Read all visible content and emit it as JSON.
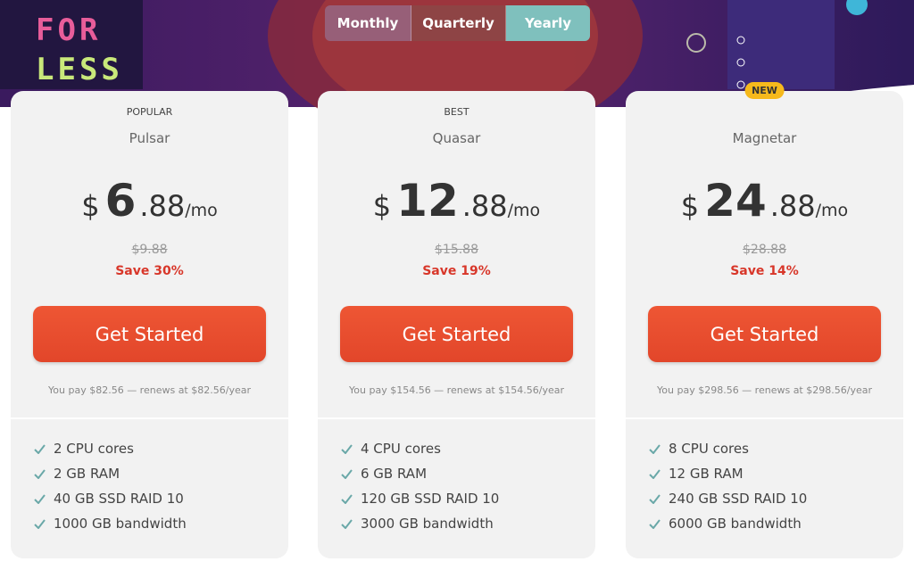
{
  "hero": {
    "art_lines": [
      "FOR",
      "LESS"
    ]
  },
  "tabs": [
    {
      "label": "Monthly"
    },
    {
      "label": "Quarterly"
    },
    {
      "label": "Yearly",
      "active": true
    }
  ],
  "plans": [
    {
      "tag": "POPULAR",
      "name": "Pulsar",
      "currency": "$",
      "whole": "6",
      "cents": ".88",
      "period": "/mo",
      "old_price": "$9.88",
      "save": "Save 30%",
      "button": "Get Started",
      "note": "You pay $82.56 — renews at $82.56/year",
      "features": [
        "2 CPU cores",
        "2 GB RAM",
        "40 GB SSD RAID 10",
        "1000 GB bandwidth"
      ]
    },
    {
      "tag": "BEST",
      "name": "Quasar",
      "currency": "$",
      "whole": "12",
      "cents": ".88",
      "period": "/mo",
      "old_price": "$15.88",
      "save": "Save 19%",
      "button": "Get Started",
      "note": "You pay $154.56 — renews at $154.56/year",
      "features": [
        "4 CPU cores",
        "6 GB RAM",
        "120 GB SSD RAID 10",
        "3000 GB bandwidth"
      ]
    },
    {
      "badge": "NEW",
      "name": "Magnetar",
      "currency": "$",
      "whole": "24",
      "cents": ".88",
      "period": "/mo",
      "old_price": "$28.88",
      "save": "Save 14%",
      "button": "Get Started",
      "note": "You pay $298.56 — renews at $298.56/year",
      "features": [
        "8 CPU cores",
        "12 GB RAM",
        "240 GB SSD RAID 10",
        "6000 GB bandwidth"
      ]
    }
  ]
}
